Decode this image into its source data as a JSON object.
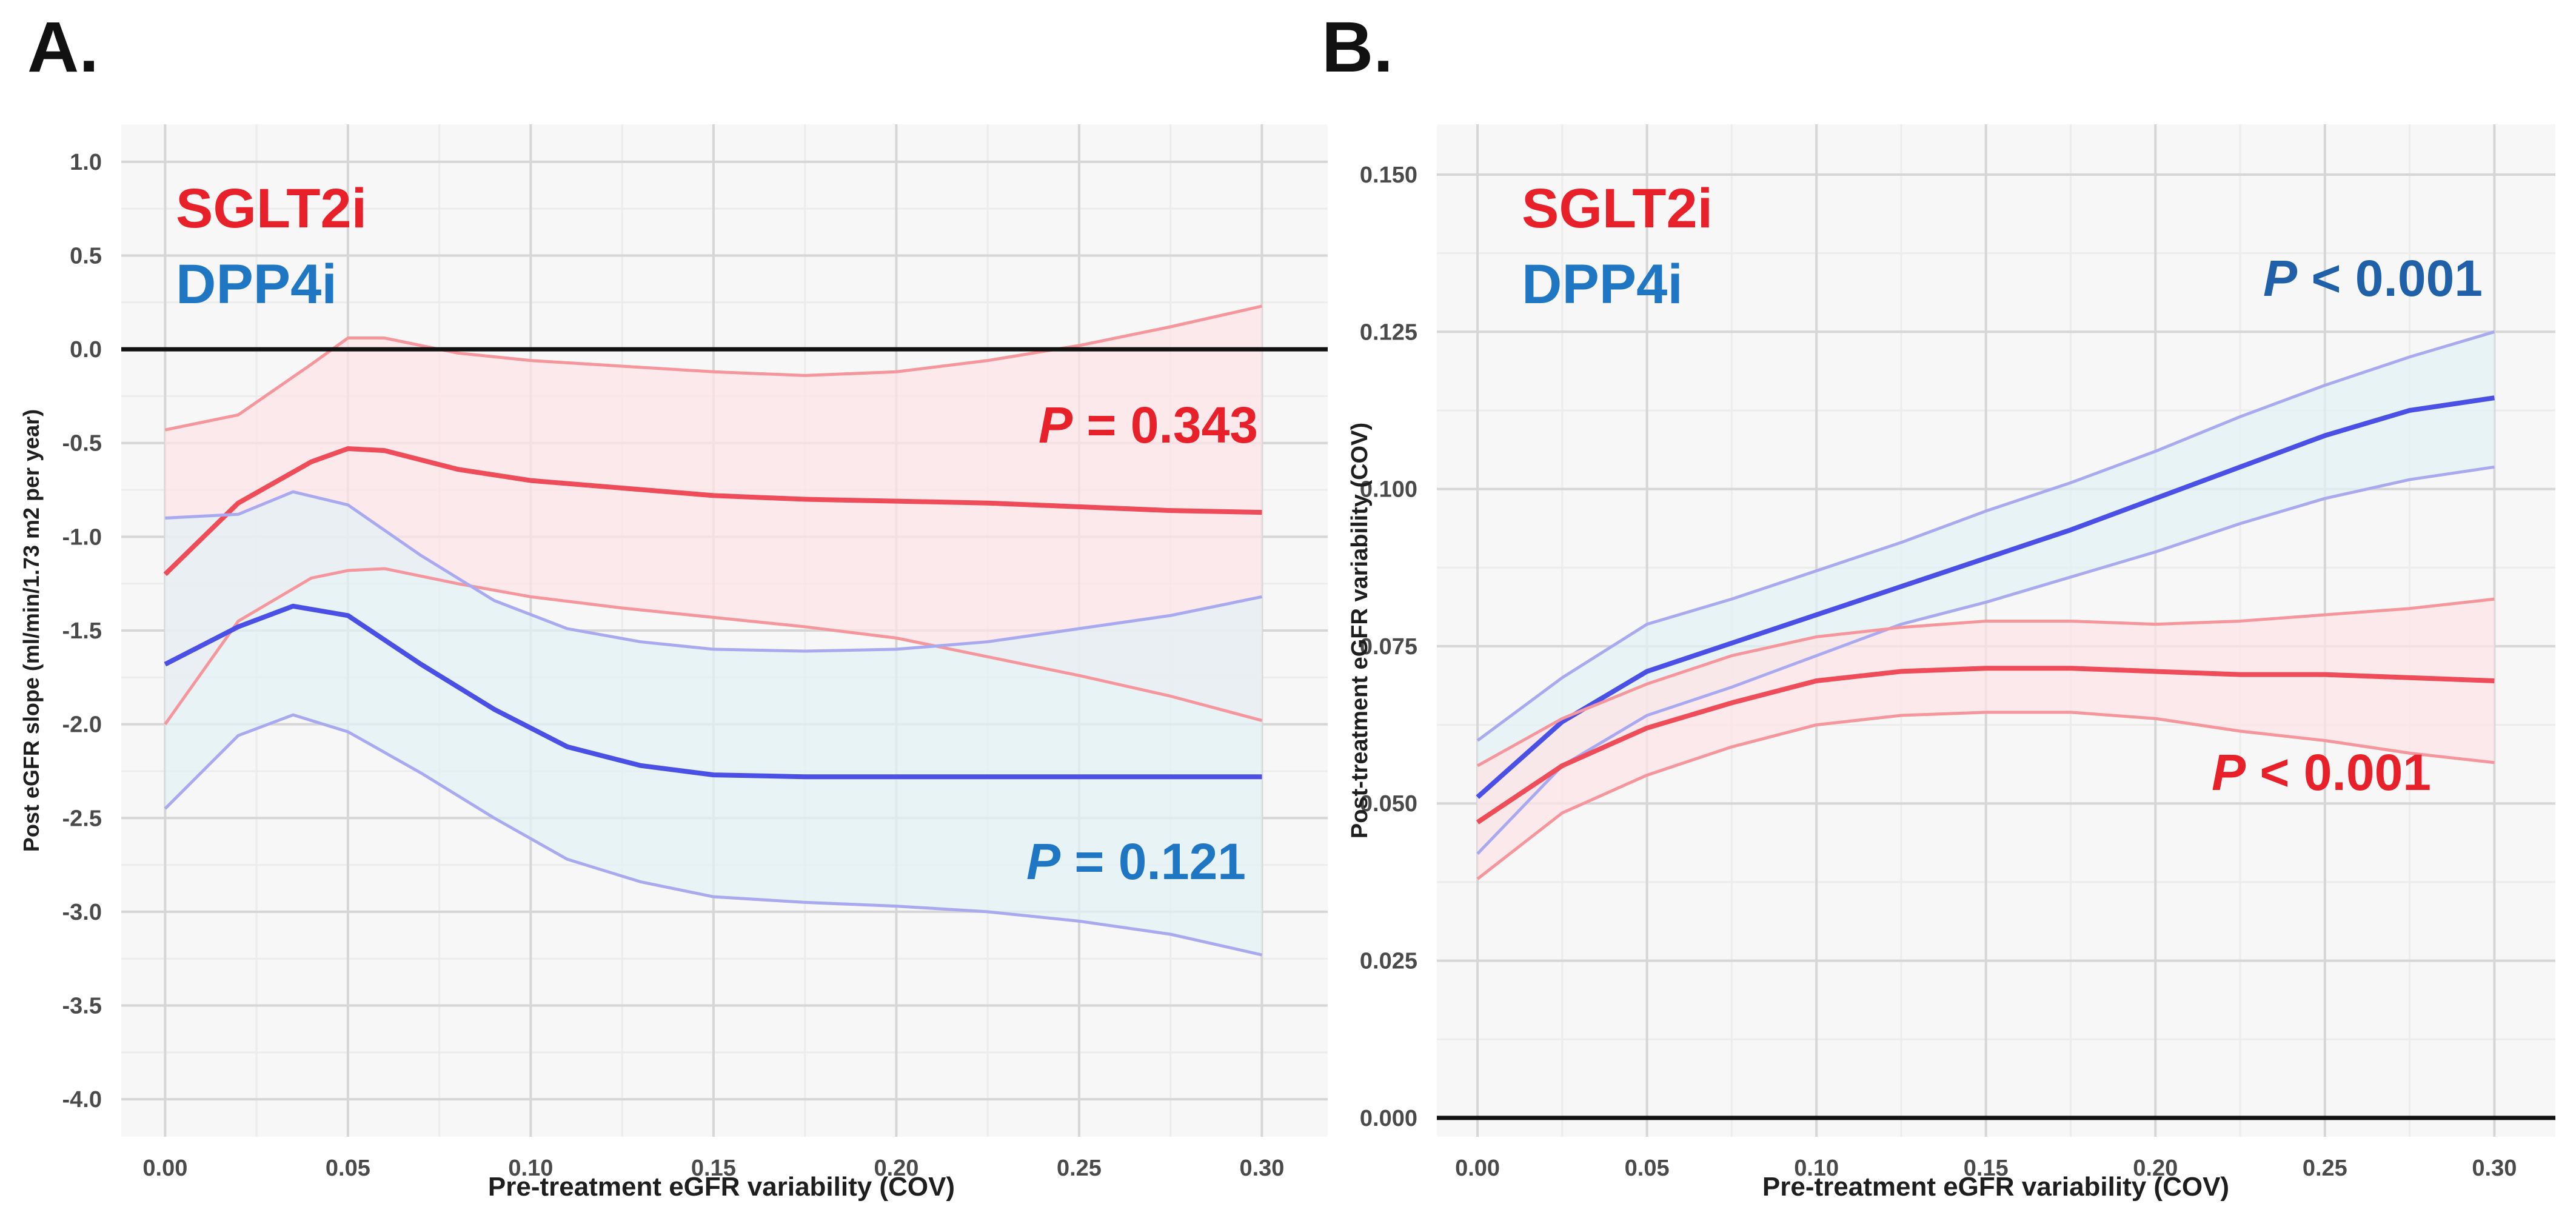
{
  "colors": {
    "sglt2i": "#e8202a",
    "dpp4i": "#1f77c4",
    "dpp4i_pvalue_b": "#2060a8",
    "sglt2i_band": "#fde3e6",
    "dpp4i_band": "#e2f1f4",
    "dpp4i_line": "#4a50e6",
    "grid_major": "#d6d6d6",
    "grid_minor": "#ececec",
    "panel_bg": "#f7f7f7"
  },
  "chart_data": [
    {
      "panel_label": "A.",
      "type": "line",
      "xlabel": "Pre-treatment eGFR variability (COV)",
      "ylabel": "Post eGFR slope (ml/min/1.73 m2 per year)",
      "xlim": [
        -0.012,
        0.318
      ],
      "ylim": [
        -4.2,
        1.2
      ],
      "x_ticks": [
        0.0,
        0.05,
        0.1,
        0.15,
        0.2,
        0.25,
        0.3
      ],
      "x_tick_labels": [
        "0.00",
        "0.05",
        "0.10",
        "0.15",
        "0.20",
        "0.25",
        "0.30"
      ],
      "y_ticks": [
        1.0,
        0.5,
        0.0,
        -0.5,
        -1.0,
        -1.5,
        -2.0,
        -2.5,
        -3.0,
        -3.5,
        -4.0
      ],
      "y_tick_labels": [
        "1.0",
        "0.5",
        "0.0",
        "-0.5",
        "-1.0",
        "-1.5",
        "-2.0",
        "-2.5",
        "-3.0",
        "-3.5",
        "-4.0"
      ],
      "reference_line_y": 0.0,
      "grid": true,
      "legend": [
        "SGLT2i",
        "DPP4i"
      ],
      "legend_position": "top-left",
      "annotations": [
        {
          "series": "SGLT2i",
          "prefix": "P",
          "text": " = 0.343",
          "position": "right-upper"
        },
        {
          "series": "DPP4i",
          "prefix": "P",
          "text": " = 0.121",
          "position": "right-lower"
        }
      ],
      "series": [
        {
          "name": "SGLT2i",
          "x": [
            0.0,
            0.02,
            0.04,
            0.05,
            0.06,
            0.08,
            0.1,
            0.125,
            0.15,
            0.175,
            0.2,
            0.225,
            0.25,
            0.275,
            0.3
          ],
          "y": [
            -1.2,
            -0.82,
            -0.6,
            -0.53,
            -0.54,
            -0.64,
            -0.7,
            -0.74,
            -0.78,
            -0.8,
            -0.81,
            -0.82,
            -0.84,
            -0.86,
            -0.87
          ],
          "lower": [
            -2.0,
            -1.45,
            -1.22,
            -1.18,
            -1.17,
            -1.25,
            -1.32,
            -1.38,
            -1.43,
            -1.48,
            -1.54,
            -1.64,
            -1.74,
            -1.85,
            -1.98
          ],
          "upper": [
            -0.43,
            -0.35,
            -0.08,
            0.06,
            0.06,
            -0.02,
            -0.06,
            -0.09,
            -0.12,
            -0.14,
            -0.12,
            -0.06,
            0.02,
            0.12,
            0.23
          ]
        },
        {
          "name": "DPP4i",
          "x": [
            0.0,
            0.02,
            0.035,
            0.05,
            0.07,
            0.09,
            0.11,
            0.13,
            0.15,
            0.175,
            0.2,
            0.225,
            0.25,
            0.275,
            0.3
          ],
          "y": [
            -1.68,
            -1.48,
            -1.37,
            -1.42,
            -1.68,
            -1.92,
            -2.12,
            -2.22,
            -2.27,
            -2.28,
            -2.28,
            -2.28,
            -2.28,
            -2.28,
            -2.28
          ],
          "lower": [
            -2.45,
            -2.06,
            -1.95,
            -2.04,
            -2.26,
            -2.5,
            -2.72,
            -2.84,
            -2.92,
            -2.95,
            -2.97,
            -3.0,
            -3.05,
            -3.12,
            -3.23
          ],
          "upper": [
            -0.9,
            -0.88,
            -0.76,
            -0.83,
            -1.1,
            -1.34,
            -1.49,
            -1.56,
            -1.6,
            -1.61,
            -1.6,
            -1.56,
            -1.49,
            -1.42,
            -1.32
          ]
        }
      ]
    },
    {
      "panel_label": "B.",
      "type": "line",
      "xlabel": "Pre-treatment eGFR variability (COV)",
      "ylabel": "Post-treatment eGFR variability (COV)",
      "xlim": [
        -0.012,
        0.318
      ],
      "ylim": [
        -0.003,
        0.158
      ],
      "x_ticks": [
        0.0,
        0.05,
        0.1,
        0.15,
        0.2,
        0.25,
        0.3
      ],
      "x_tick_labels": [
        "0.00",
        "0.05",
        "0.10",
        "0.15",
        "0.20",
        "0.25",
        "0.30"
      ],
      "y_ticks": [
        0.15,
        0.125,
        0.1,
        0.075,
        0.05,
        0.025,
        0.0
      ],
      "y_tick_labels": [
        "0.150",
        "0.125",
        "0.100",
        "0.075",
        "0.050",
        "0.025",
        "0.000"
      ],
      "reference_line_y": 0.0,
      "grid": true,
      "legend": [
        "SGLT2i",
        "DPP4i"
      ],
      "legend_position": "top-left",
      "annotations": [
        {
          "series": "DPP4i",
          "prefix": "P",
          "text": " < 0.001",
          "position": "right-upper"
        },
        {
          "series": "SGLT2i",
          "prefix": "P",
          "text": " < 0.001",
          "position": "right-lower"
        }
      ],
      "series": [
        {
          "name": "DPP4i",
          "x": [
            0.0,
            0.025,
            0.05,
            0.075,
            0.1,
            0.125,
            0.15,
            0.175,
            0.2,
            0.225,
            0.25,
            0.275,
            0.3
          ],
          "y": [
            0.051,
            0.063,
            0.071,
            0.0755,
            0.08,
            0.0845,
            0.089,
            0.0935,
            0.0985,
            0.1035,
            0.1085,
            0.1125,
            0.1145
          ],
          "lower": [
            0.042,
            0.056,
            0.064,
            0.0685,
            0.0735,
            0.0785,
            0.082,
            0.086,
            0.09,
            0.0945,
            0.0985,
            0.1015,
            0.1035
          ],
          "upper": [
            0.06,
            0.07,
            0.0785,
            0.0825,
            0.087,
            0.0915,
            0.0965,
            0.101,
            0.106,
            0.1115,
            0.1165,
            0.121,
            0.125
          ]
        },
        {
          "name": "SGLT2i",
          "x": [
            0.0,
            0.025,
            0.05,
            0.075,
            0.1,
            0.125,
            0.15,
            0.175,
            0.2,
            0.225,
            0.25,
            0.275,
            0.3
          ],
          "y": [
            0.047,
            0.056,
            0.062,
            0.066,
            0.0695,
            0.071,
            0.0715,
            0.0715,
            0.071,
            0.0705,
            0.0705,
            0.07,
            0.0695
          ],
          "lower": [
            0.038,
            0.0485,
            0.0545,
            0.059,
            0.0625,
            0.064,
            0.0645,
            0.0645,
            0.0635,
            0.0615,
            0.06,
            0.058,
            0.0565
          ],
          "upper": [
            0.056,
            0.0635,
            0.069,
            0.0735,
            0.0765,
            0.078,
            0.079,
            0.079,
            0.0785,
            0.079,
            0.08,
            0.081,
            0.0825
          ]
        }
      ]
    }
  ]
}
